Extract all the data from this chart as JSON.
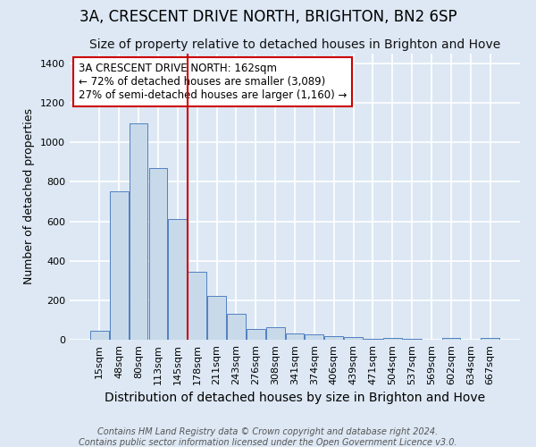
{
  "title1": "3A, CRESCENT DRIVE NORTH, BRIGHTON, BN2 6SP",
  "title2": "Size of property relative to detached houses in Brighton and Hove",
  "xlabel": "Distribution of detached houses by size in Brighton and Hove",
  "ylabel": "Number of detached properties",
  "categories": [
    "15sqm",
    "48sqm",
    "80sqm",
    "113sqm",
    "145sqm",
    "178sqm",
    "211sqm",
    "243sqm",
    "276sqm",
    "308sqm",
    "341sqm",
    "374sqm",
    "406sqm",
    "439sqm",
    "471sqm",
    "504sqm",
    "537sqm",
    "569sqm",
    "602sqm",
    "634sqm",
    "667sqm"
  ],
  "values": [
    47,
    750,
    1095,
    868,
    612,
    345,
    222,
    130,
    55,
    65,
    30,
    27,
    18,
    12,
    5,
    8,
    5,
    0,
    10,
    0,
    11
  ],
  "bar_color": "#c8daea",
  "bar_edge_color": "#5080c0",
  "bg_color": "#dde8f4",
  "grid_color": "#ffffff",
  "vline_color": "#cc0000",
  "annotation_text": "3A CRESCENT DRIVE NORTH: 162sqm\n← 72% of detached houses are smaller (3,089)\n27% of semi-detached houses are larger (1,160) →",
  "annotation_box_color": "#ffffff",
  "annotation_box_edge": "#cc0000",
  "footnote1": "Contains HM Land Registry data © Crown copyright and database right 2024.",
  "footnote2": "Contains public sector information licensed under the Open Government Licence v3.0.",
  "ylim": [
    0,
    1450
  ],
  "title1_fontsize": 12,
  "title2_fontsize": 10,
  "xlabel_fontsize": 10,
  "ylabel_fontsize": 9,
  "tick_fontsize": 8,
  "annot_fontsize": 8.5,
  "footnote_fontsize": 7
}
